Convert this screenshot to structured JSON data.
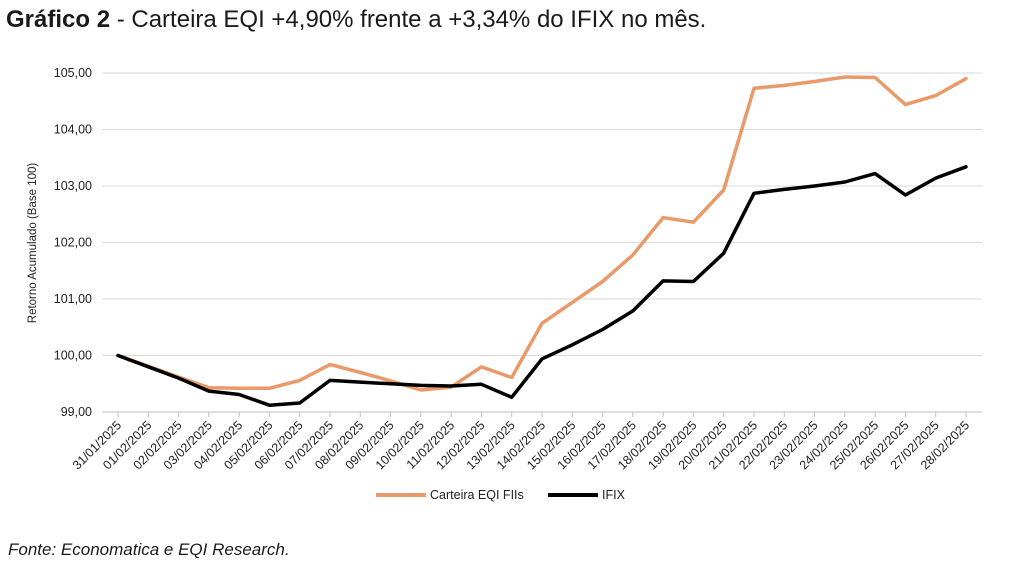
{
  "header": {
    "title_bold": "Gráfico 2",
    "title_rest": " - Carteira EQI +4,90% frente a +3,34% do IFIX no mês."
  },
  "footer": {
    "source": "Fonte: Economatica e EQI Research."
  },
  "chart_data": {
    "type": "line",
    "title": "Gráfico 2 - Carteira EQI +4,90% frente a +3,34% do IFIX no mês.",
    "xlabel": "",
    "ylabel": "Retorno Acumulado (Base 100)",
    "ylim": [
      99,
      105
    ],
    "yticks": [
      "99,00",
      "100,00",
      "101,00",
      "102,00",
      "103,00",
      "104,00",
      "105,00"
    ],
    "grid": "horizontal",
    "legend": "bottom",
    "x": [
      "31/01/2025",
      "01/02/2025",
      "02/02/2025",
      "03/02/2025",
      "04/02/2025",
      "05/02/2025",
      "06/02/2025",
      "07/02/2025",
      "08/02/2025",
      "09/02/2025",
      "10/02/2025",
      "11/02/2025",
      "12/02/2025",
      "13/02/2025",
      "14/02/2025",
      "15/02/2025",
      "16/02/2025",
      "17/02/2025",
      "18/02/2025",
      "19/02/2025",
      "20/02/2025",
      "21/02/2025",
      "22/02/2025",
      "23/02/2025",
      "24/02/2025",
      "25/02/2025",
      "26/02/2025",
      "27/02/2025",
      "28/02/2025"
    ],
    "series": [
      {
        "name": "Carteira EQI FIIs",
        "color": "#E9996A",
        "values": [
          100.0,
          99.81,
          99.62,
          99.43,
          99.42,
          99.42,
          99.56,
          99.84,
          99.7,
          99.55,
          99.39,
          99.44,
          99.8,
          99.61,
          100.57,
          100.94,
          101.31,
          101.78,
          102.44,
          102.36,
          102.93,
          104.73,
          104.78,
          104.85,
          104.93,
          104.92,
          104.44,
          104.6,
          104.9
        ]
      },
      {
        "name": "IFIX",
        "color": "#000000",
        "values": [
          100.0,
          99.8,
          99.6,
          99.37,
          99.31,
          99.12,
          99.16,
          99.56,
          99.53,
          99.5,
          99.47,
          99.46,
          99.49,
          99.26,
          99.94,
          100.19,
          100.46,
          100.79,
          101.32,
          101.31,
          101.81,
          102.87,
          102.94,
          103.0,
          103.07,
          103.22,
          102.84,
          103.14,
          103.34
        ]
      }
    ]
  }
}
